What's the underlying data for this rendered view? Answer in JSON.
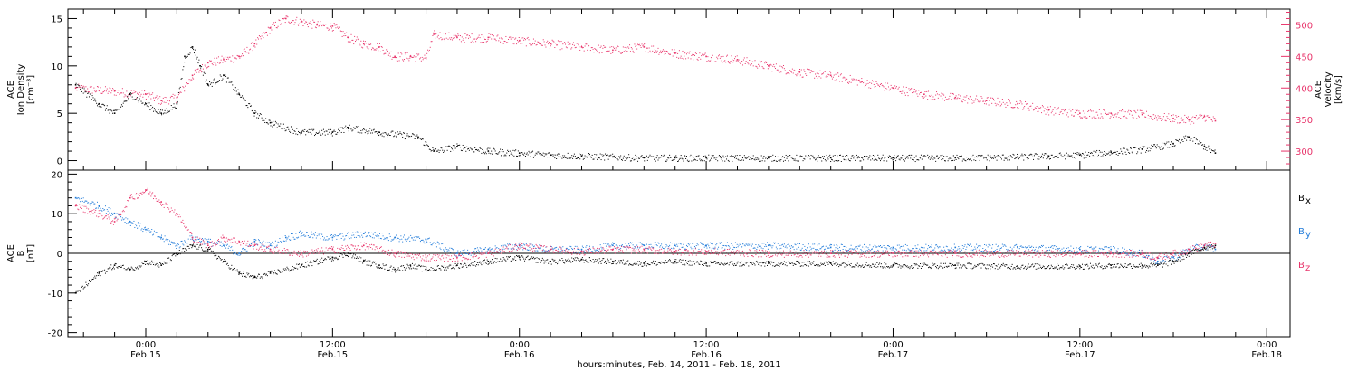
{
  "figure": {
    "xlabel": "hours:minutes, Feb. 14, 2011 - Feb. 18, 2011",
    "time_range_hours": [
      -5,
      73.5
    ],
    "colors": {
      "black": "#000000",
      "blue": "#1f7ad9",
      "red": "#e8336a"
    }
  },
  "chart_data": [
    {
      "type": "scatter",
      "panel": "top",
      "x_unit": "hours from 00:00 Feb. 15, 2011",
      "x_ticks": [
        {
          "x": 0,
          "time": "0:00",
          "date": "Feb.15"
        },
        {
          "x": 12,
          "time": "12:00",
          "date": "Feb.15"
        },
        {
          "x": 24,
          "time": "0:00",
          "date": "Feb.16"
        },
        {
          "x": 36,
          "time": "12:00",
          "date": "Feb.16"
        },
        {
          "x": 48,
          "time": "0:00",
          "date": "Feb.17"
        },
        {
          "x": 60,
          "time": "12:00",
          "date": "Feb.17"
        },
        {
          "x": 72,
          "time": "0:00",
          "date": "Feb.18"
        }
      ],
      "left_axis": {
        "label_lines": [
          "ACE",
          "Ion Density",
          "[cm⁻³]"
        ],
        "ylim": [
          -1,
          16
        ],
        "ticks": [
          0,
          5,
          10,
          15
        ]
      },
      "right_axis": {
        "label_lines": [
          "ACE",
          "Velocity",
          "[km/s]"
        ],
        "ylim": [
          270,
          525
        ],
        "ticks": [
          300,
          350,
          400,
          450,
          500
        ],
        "color": "#e8336a"
      },
      "series": [
        {
          "axis": "left",
          "color": "#000000",
          "x": [
            -4.5,
            -3,
            -2,
            -1,
            0,
            1,
            2,
            2.5,
            3,
            3.5,
            4,
            5,
            6,
            7,
            8,
            10,
            12,
            13,
            15,
            17.5,
            18.5,
            20,
            22,
            24,
            26,
            28,
            30,
            32,
            34,
            36,
            40,
            44,
            48,
            52,
            56,
            58,
            60,
            62,
            64,
            66,
            67,
            68,
            68.7
          ],
          "y": [
            8,
            6,
            5,
            7,
            6,
            5,
            6,
            11,
            12,
            10,
            8,
            9,
            7,
            5,
            4,
            3,
            3,
            3.5,
            3,
            2.5,
            1,
            1.5,
            1,
            0.8,
            0.6,
            0.5,
            0.4,
            0.3,
            0.3,
            0.3,
            0.3,
            0.3,
            0.3,
            0.3,
            0.4,
            0.5,
            0.6,
            0.9,
            1.2,
            1.8,
            2.5,
            1.5,
            0.8
          ]
        },
        {
          "axis": "right",
          "color": "#e8336a",
          "x": [
            -4.5,
            -2,
            0,
            1,
            2,
            3,
            4,
            5,
            6,
            7,
            8,
            9,
            10,
            11,
            12,
            13,
            14,
            15,
            16,
            17,
            18,
            18.5,
            20,
            22,
            24,
            26,
            28,
            30,
            32,
            34,
            36,
            38,
            40,
            42,
            44,
            46,
            48,
            50,
            52,
            54,
            56,
            58,
            60,
            62,
            64,
            66,
            67,
            68,
            68.7
          ],
          "y": [
            400,
            395,
            390,
            380,
            385,
            420,
            440,
            445,
            450,
            470,
            495,
            510,
            505,
            500,
            498,
            480,
            470,
            465,
            450,
            450,
            448,
            485,
            480,
            480,
            475,
            470,
            465,
            460,
            465,
            455,
            450,
            445,
            435,
            425,
            420,
            410,
            400,
            390,
            385,
            380,
            375,
            365,
            360,
            360,
            358,
            352,
            350,
            355,
            348
          ]
        }
      ]
    },
    {
      "type": "scatter",
      "panel": "bottom",
      "x_unit": "hours from 00:00 Feb. 15, 2011",
      "left_axis": {
        "label_lines": [
          "ACE",
          "B",
          "[nT]"
        ],
        "ylim": [
          -21,
          21
        ],
        "ticks": [
          -20,
          -10,
          0,
          10,
          20
        ]
      },
      "zero_line": true,
      "series": [
        {
          "name": "Bx",
          "label_main": "B",
          "label_sub": "x",
          "color": "#000000",
          "x": [
            -4.5,
            -3,
            -2,
            -1,
            0,
            1,
            2,
            3,
            4,
            5,
            6,
            7,
            8,
            10,
            12,
            13,
            14,
            15,
            16,
            17,
            18,
            20,
            22,
            24,
            26,
            28,
            30,
            32,
            34,
            36,
            40,
            44,
            48,
            52,
            56,
            60,
            62,
            64,
            65,
            66,
            67,
            68,
            68.7
          ],
          "y": [
            -10,
            -5,
            -3,
            -4,
            -2,
            -3,
            0,
            2,
            1,
            -2,
            -5,
            -6,
            -5,
            -3,
            -1,
            0,
            -2,
            -3,
            -4,
            -3,
            -4,
            -3,
            -2,
            -1,
            -2,
            -1.5,
            -2,
            -2.5,
            -2,
            -2.5,
            -2.5,
            -2.5,
            -3,
            -3,
            -3.2,
            -3.2,
            -3,
            -3,
            -3,
            -2,
            0,
            1.5,
            2
          ]
        },
        {
          "name": "By",
          "label_main": "B",
          "label_sub": "y",
          "color": "#1f7ad9",
          "x": [
            -4.5,
            -3,
            -2,
            -1,
            0,
            1,
            2,
            3,
            4,
            5,
            6,
            7,
            8,
            9,
            10,
            12,
            14,
            16,
            18,
            20,
            22,
            24,
            26,
            28,
            30,
            32,
            34,
            36,
            40,
            44,
            48,
            52,
            56,
            60,
            62,
            64,
            65,
            66,
            67,
            68,
            68.7
          ],
          "y": [
            14,
            12,
            10,
            8,
            6,
            4,
            2,
            4,
            3,
            2,
            0,
            3,
            2,
            4,
            5,
            4,
            5,
            4,
            3.5,
            0,
            1,
            2,
            1,
            1,
            2,
            2,
            2,
            2,
            2,
            1.5,
            1.5,
            1.5,
            1.5,
            1,
            1,
            0,
            -2,
            -1,
            1,
            2,
            1
          ]
        },
        {
          "name": "Bz",
          "label_main": "B",
          "label_sub": "z",
          "color": "#e8336a",
          "x": [
            -4.5,
            -3,
            -2,
            -1,
            0,
            1,
            2,
            3,
            4,
            5,
            6,
            7,
            8,
            10,
            12,
            14,
            16,
            18,
            20,
            22,
            24,
            26,
            28,
            30,
            32,
            34,
            36,
            40,
            44,
            48,
            52,
            56,
            60,
            62,
            64,
            65,
            66,
            67,
            68,
            68.7
          ],
          "y": [
            12,
            10,
            8,
            14,
            16,
            13,
            10,
            4,
            2,
            4,
            3,
            2,
            1,
            0,
            1,
            2,
            0,
            -1,
            -1,
            0,
            2,
            1,
            0.5,
            1,
            1,
            0.5,
            0.5,
            0,
            0,
            0,
            0,
            0,
            0,
            0,
            0,
            -1,
            0,
            1,
            2,
            2.5
          ]
        }
      ]
    }
  ]
}
